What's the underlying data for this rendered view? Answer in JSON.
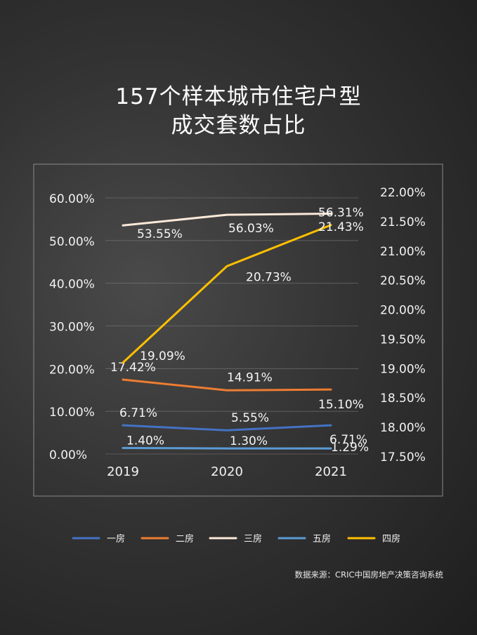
{
  "title": {
    "line1": "157个样本城市住宅户型",
    "line2": "成交套数占比"
  },
  "source": "数据来源：CRIC中国房地产决策咨询系统",
  "colors": {
    "一房": "#4472c4",
    "二房": "#ed7d31",
    "三房": "#fde9d9",
    "五房": "#5b9bd5",
    "四房": "#ffc000"
  },
  "chart_data": {
    "type": "line",
    "categories": [
      "2019",
      "2020",
      "2021"
    ],
    "y_left": {
      "ticks": [
        "0.00%",
        "10.00%",
        "20.00%",
        "30.00%",
        "40.00%",
        "50.00%",
        "60.00%"
      ],
      "range": [
        0,
        60
      ]
    },
    "y_right": {
      "ticks": [
        "17.50%",
        "18.00%",
        "18.50%",
        "19.00%",
        "19.50%",
        "20.00%",
        "20.50%",
        "21.00%",
        "21.50%",
        "22.00%"
      ],
      "range": [
        17.5,
        22
      ]
    },
    "grid": true,
    "legend": "bottom",
    "series": [
      {
        "name": "一房",
        "axis": "left",
        "values": [
          6.71,
          5.55,
          6.71
        ],
        "labels": [
          "6.71%",
          "5.55%",
          "6.71%"
        ]
      },
      {
        "name": "二房",
        "axis": "left",
        "values": [
          17.42,
          14.91,
          15.1
        ],
        "labels": [
          "17.42%",
          "14.91%",
          "15.10%"
        ]
      },
      {
        "name": "三房",
        "axis": "left",
        "values": [
          53.55,
          56.03,
          56.31
        ],
        "labels": [
          "53.55%",
          "56.03%",
          "56.31%"
        ]
      },
      {
        "name": "五房",
        "axis": "left",
        "values": [
          1.4,
          1.3,
          1.29
        ],
        "labels": [
          "1.40%",
          "1.30%",
          "1.29%"
        ]
      },
      {
        "name": "四房",
        "axis": "right",
        "values": [
          19.09,
          20.73,
          21.43
        ],
        "labels": [
          "19.09%",
          "20.73%",
          "21.43%"
        ]
      }
    ],
    "legend_order": [
      "一房",
      "二房",
      "三房",
      "五房",
      "四房"
    ]
  }
}
